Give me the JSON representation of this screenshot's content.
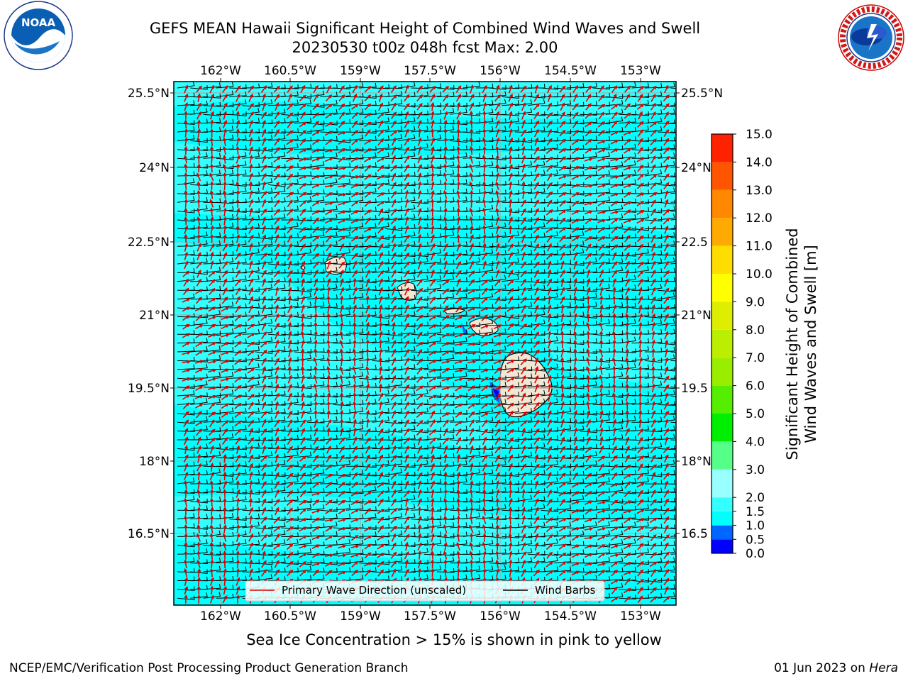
{
  "title": {
    "line1": "GEFS MEAN Hawaii Significant Height of Combined Wind Waves and Swell",
    "line2": "20230530 t00z 048h fcst   Max: 2.00"
  },
  "logos": {
    "left": {
      "name": "noaa-logo",
      "text": "NOAA",
      "ring_text": "NATIONAL OCEANIC AND ATMOSPHERIC ADMINISTRATION · U.S. DEPARTMENT OF COMMERCE"
    },
    "right": {
      "name": "nws-logo",
      "ring_text": "NATIONAL WEATHER SERVICE"
    }
  },
  "map": {
    "lon_ticks": [
      "162°W",
      "160.5°W",
      "159°W",
      "157.5°W",
      "156°W",
      "154.5°W",
      "153°W"
    ],
    "lat_ticks_left": [
      "25.5°N",
      "24°N",
      "22.5°N",
      "21°N",
      "19.5°N",
      "18°N",
      "16.5°N"
    ],
    "lat_ticks_right": [
      "25.5°N",
      "24°N",
      "22.5",
      "21°N",
      "19.5",
      "18°N",
      "16.5"
    ],
    "ocean_color": "#00ffff",
    "land_color": "#efe8d6",
    "grid_color": "#aaaaaa",
    "wave_arrow_color": "#e00000",
    "barb_color": "#000000"
  },
  "legend": {
    "wave_label": "Primary Wave Direction (unscaled)",
    "barb_label": "Wind Barbs"
  },
  "colorbar": {
    "title_line1": "Significant Height of Combined",
    "title_line2": "Wind Waves and Swell [m]",
    "levels": [
      "0.0",
      "0.5",
      "1.0",
      "1.5",
      "2.0",
      "3.0",
      "4.0",
      "5.0",
      "6.0",
      "7.0",
      "8.0",
      "9.0",
      "10.0",
      "11.0",
      "12.0",
      "13.0",
      "14.0",
      "15.0"
    ],
    "colors": [
      "#0000ff",
      "#0066ff",
      "#00ffff",
      "#33ffff",
      "#99ffff",
      "#55ff88",
      "#00ee00",
      "#55ee00",
      "#99ee00",
      "#bbee00",
      "#ddee00",
      "#ffff00",
      "#ffdd00",
      "#ffaa00",
      "#ff8800",
      "#ff5500",
      "#ff2200"
    ]
  },
  "chart_data": {
    "type": "heatmap",
    "field": "Significant Height of Combined Wind Waves and Swell",
    "units": "m",
    "max_value": 2.0,
    "lon_range": [
      "163°W",
      "152.2°W"
    ],
    "lat_range": [
      "15°N",
      "25.8°N"
    ],
    "colorbar_range": [
      0.0,
      15.0
    ],
    "predominant_band": "1.5-2.0",
    "vectors": [
      "Primary Wave Direction (unscaled)",
      "Wind Barbs"
    ]
  },
  "footer": {
    "note": "Sea Ice Concentration > 15% is shown in pink to yellow",
    "credit_left": "NCEP/EMC/Verification Post Processing Product Generation Branch",
    "credit_date": "01 Jun 2023 on",
    "credit_host": "Hera"
  }
}
